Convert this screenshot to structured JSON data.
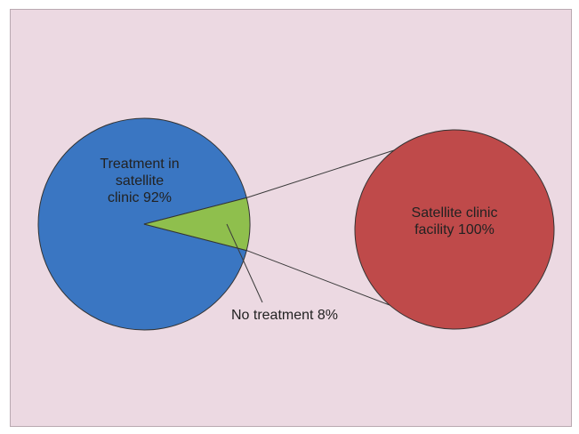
{
  "chart_data": [
    {
      "type": "pie",
      "categories": [
        "Treatment in satellite clinic",
        "No treatment"
      ],
      "values": [
        92,
        8
      ],
      "labels": [
        [
          "Treatment in",
          "satellite",
          "clinic 92%"
        ],
        [
          "No treatment 8%"
        ]
      ],
      "colors": [
        "#3a76c2",
        "#8fbf4d"
      ]
    },
    {
      "type": "pie",
      "categories": [
        "Satellite clinic facility"
      ],
      "values": [
        100
      ],
      "labels": [
        [
          "Satellite clinic",
          "facility 100%"
        ]
      ],
      "colors": [
        "#bf4a4a"
      ]
    }
  ],
  "colors": {
    "background": "#ecd9e2",
    "outline": "#333333",
    "connector": "#3a3a3a"
  }
}
